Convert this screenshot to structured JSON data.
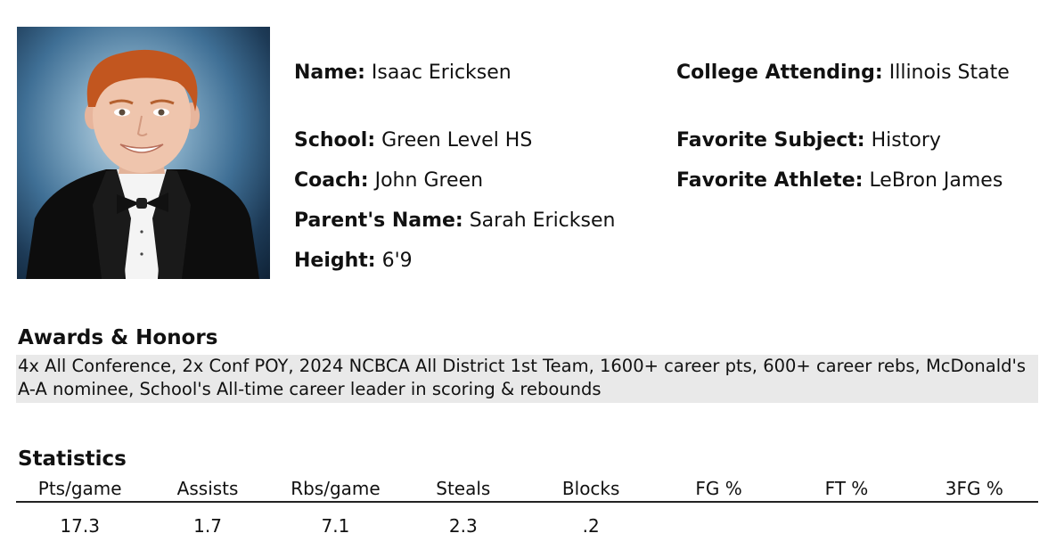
{
  "profile": {
    "name_label": "Name:",
    "name_value": "Isaac Ericksen",
    "college_label": "College Attending:",
    "college_value": "Illinois State",
    "school_label": "School:",
    "school_value": "Green Level HS",
    "subject_label": "Favorite Subject:",
    "subject_value": "History",
    "coach_label": "Coach:",
    "coach_value": "John Green",
    "athlete_label": "Favorite Athlete:",
    "athlete_value": "LeBron James",
    "parent_label": "Parent's Name:",
    "parent_value": "Sarah Ericksen",
    "height_label": "Height:",
    "height_value": "6'9"
  },
  "awards": {
    "title": "Awards & Honors",
    "text": "4x All Conference, 2x Conf POY, 2024 NCBCA All District 1st Team, 1600+ career pts, 600+ career rebs, McDonald's A-A nominee, School's All-time career leader in scoring & rebounds"
  },
  "statistics": {
    "title": "Statistics",
    "headers": [
      "Pts/game",
      "Assists",
      "Rbs/game",
      "Steals",
      "Blocks",
      "FG %",
      "FT %",
      "3FG %"
    ],
    "values": [
      "17.3",
      "1.7",
      "7.1",
      "2.3",
      ".2",
      "",
      "",
      ""
    ]
  },
  "photo": {
    "subject": "portrait-photo",
    "colors": {
      "background": "#3f6f95",
      "hair": "#c2561f",
      "suit": "#0d0d0d",
      "shirt": "#f4f4f4",
      "skin": "#efc5ad"
    }
  }
}
